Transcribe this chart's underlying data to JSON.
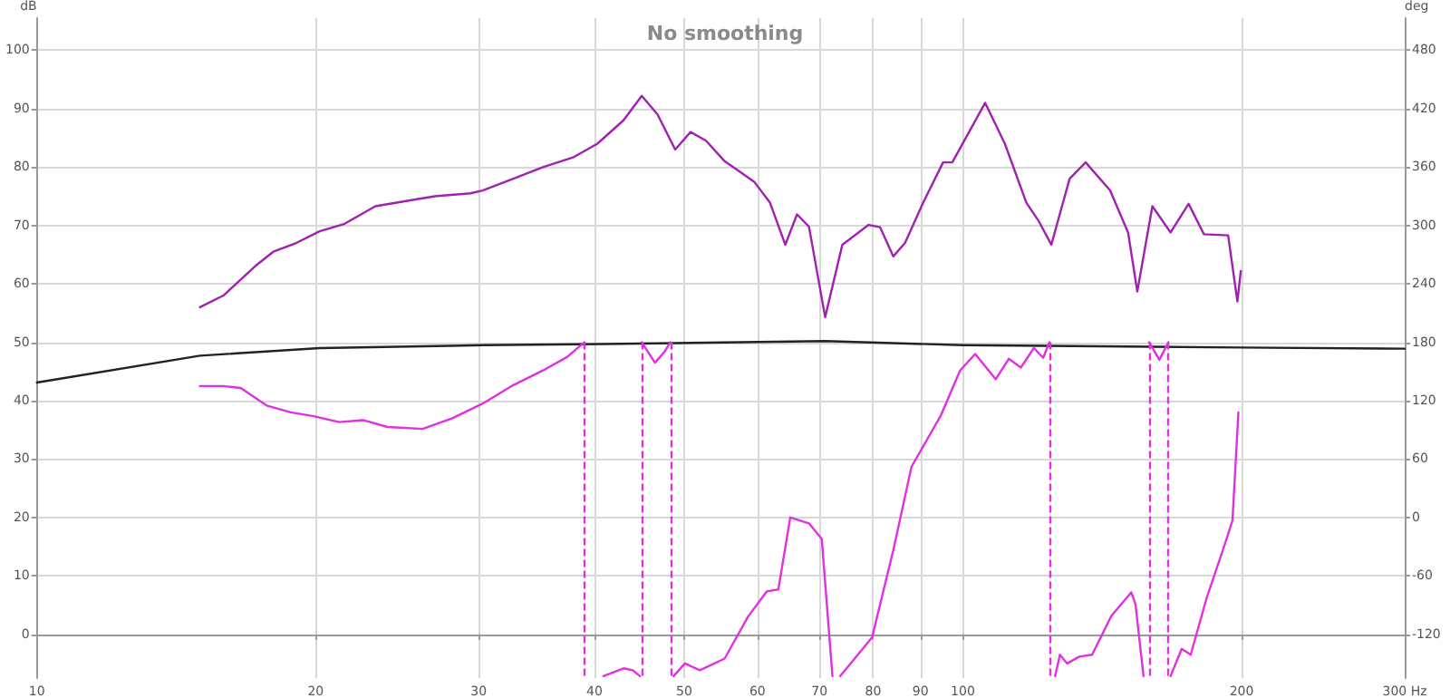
{
  "chart_data": {
    "type": "line",
    "title": "No smoothing",
    "ylabel": "dB",
    "y2label": "deg",
    "xlim": [
      10,
      300
    ],
    "xticks": [
      10,
      20,
      30,
      40,
      50,
      60,
      70,
      80,
      90,
      100,
      200,
      {
        "value": 300,
        "label": "300 Hz"
      }
    ],
    "ylim": [
      -7.5,
      105.5
    ],
    "yticks": [
      0,
      10,
      20,
      30,
      40,
      50,
      60,
      70,
      80,
      90,
      100
    ],
    "y2lim": [
      -165,
      513
    ],
    "y2ticks": [
      -120,
      -60,
      0,
      60,
      120,
      180,
      240,
      300,
      360,
      420,
      480
    ],
    "log": "x",
    "grid": true,
    "marker": "none",
    "ref_lines": [
      {
        "axis": "x",
        "value": 39,
        "color": "#e030e0",
        "line_style": "dashed"
      },
      {
        "axis": "x",
        "value": 45,
        "color": "#e030e0",
        "line_style": "dashed"
      },
      {
        "axis": "x",
        "value": 48.3,
        "color": "#e030e0",
        "line_style": "dashed"
      },
      {
        "axis": "x",
        "value": 124,
        "color": "#e030e0",
        "line_style": "dashed"
      },
      {
        "axis": "x",
        "value": 158.9,
        "color": "#e030e0",
        "line_style": "dashed"
      },
      {
        "axis": "x",
        "value": 166.7,
        "color": "#e030e0",
        "line_style": "dashed"
      }
    ],
    "series": [
      {
        "color": "#a020b0",
        "line_style": "solid",
        "x": [
          15.0,
          15.9,
          17.2,
          18.0,
          19.06,
          20.2,
          21.5,
          23.2,
          25.3,
          26.9,
          29.4,
          30.3,
          32.7,
          35.2,
          38.0,
          40.3,
          43.0,
          45.0,
          46.8,
          48.9,
          50.8,
          52.8,
          55.3,
          59.5,
          61.9,
          64.3,
          66.2,
          68.2,
          71.0,
          74.1,
          79.1,
          81.4,
          84.1,
          86.6,
          90.6,
          95.2,
          97.4,
          105.7,
          111.0,
          117.1,
          120.7,
          124.6,
          130.4,
          135.7,
          144.2,
          150.8,
          154.3,
          160.2,
          167.6,
          175.3,
          182.1,
          193.4,
          197.9,
          199.6
        ],
        "values": [
          56,
          58,
          63,
          65.5,
          67,
          69,
          70.3,
          73.3,
          74.3,
          75,
          75.5,
          76,
          78,
          80,
          81.7,
          84,
          88,
          92.2,
          89,
          83,
          86,
          84.5,
          81,
          77.5,
          73.9,
          66.7,
          71.9,
          69.8,
          54.3,
          66.7,
          70.1,
          69.7,
          64.7,
          67,
          73.9,
          80.8,
          80.8,
          91,
          84,
          73.9,
          70.8,
          66.7,
          78,
          80.8,
          76,
          68.8,
          58.7,
          73.3,
          68.8,
          73.7,
          68.5,
          68.3,
          57,
          62.2
        ]
      },
      {
        "color": "#222222",
        "line_style": "solid",
        "x": [
          10,
          15.0,
          20.2,
          30.3,
          40.9,
          71,
          100,
          200,
          300
        ],
        "values": [
          43.1,
          47.7,
          49.0,
          49.5,
          49.7,
          50.2,
          49.5,
          49.1,
          48.9
        ]
      },
      {
        "color": "#e030e0",
        "line_style": "solid",
        "axis": "y2",
        "x": [
          15.0,
          15.9,
          16.6,
          17.7,
          18.8,
          19.9,
          21.2,
          22.5,
          23.9,
          26.1,
          28.1,
          30.3,
          32.7,
          35.2,
          37.4,
          39.0
        ],
        "values": [
          135,
          135,
          133,
          115,
          108,
          104,
          98,
          100,
          93,
          91,
          102,
          117,
          136,
          151,
          165,
          180
        ]
      },
      {
        "color": "#e030e0",
        "line_style": "solid",
        "axis": "y2",
        "x": [
          40.9,
          43.0,
          44.0,
          44.8
        ],
        "values": [
          -163,
          -155,
          -157,
          -163
        ]
      },
      {
        "color": "#e030e0",
        "line_style": "solid",
        "axis": "y2",
        "x": [
          45.0,
          46.5,
          47.6,
          48.3
        ],
        "values": [
          180,
          159,
          170,
          180
        ]
      },
      {
        "color": "#e030e0",
        "line_style": "solid",
        "axis": "y2",
        "x": [
          48.7,
          50.1,
          52.0,
          55.3,
          58.6,
          61.4,
          63.2,
          65.1,
          68.2,
          70.4,
          72.3
        ],
        "values": [
          -163,
          -150,
          -157,
          -145,
          -102,
          -76,
          -74,
          0,
          -6,
          -22,
          -163
        ]
      },
      {
        "color": "#e030e0",
        "line_style": "solid",
        "axis": "y2",
        "x": [
          73.7,
          75.5,
          79.8,
          84.1,
          88.0,
          94.7,
          99.3,
          103.1,
          108.5,
          112.1,
          115.5,
          119.3,
          122.1,
          124.0
        ],
        "values": [
          -163,
          -151,
          -123,
          -34,
          52,
          105,
          151,
          168,
          142,
          163,
          154,
          174,
          164,
          180
        ]
      },
      {
        "color": "#e030e0",
        "line_style": "solid",
        "axis": "y2",
        "x": [
          125.8,
          127.3,
          129.6,
          133.6,
          137.9,
          144.7,
          152.0,
          153.6,
          156.7
        ],
        "values": [
          -163,
          -141,
          -150,
          -143,
          -141,
          -101,
          -77,
          -89,
          -163
        ]
      },
      {
        "color": "#e030e0",
        "line_style": "solid",
        "axis": "y2",
        "x": [
          158.9,
          163.0,
          166.7
        ],
        "values": [
          180,
          162,
          180
        ]
      },
      {
        "color": "#e030e0",
        "line_style": "solid",
        "axis": "y2",
        "x": [
          167.6,
          172.3,
          176.2,
          183.3,
          191.9,
          195.5,
          198.4
        ],
        "values": [
          -163,
          -135,
          -141,
          -83,
          -27,
          -3,
          108
        ]
      }
    ]
  }
}
